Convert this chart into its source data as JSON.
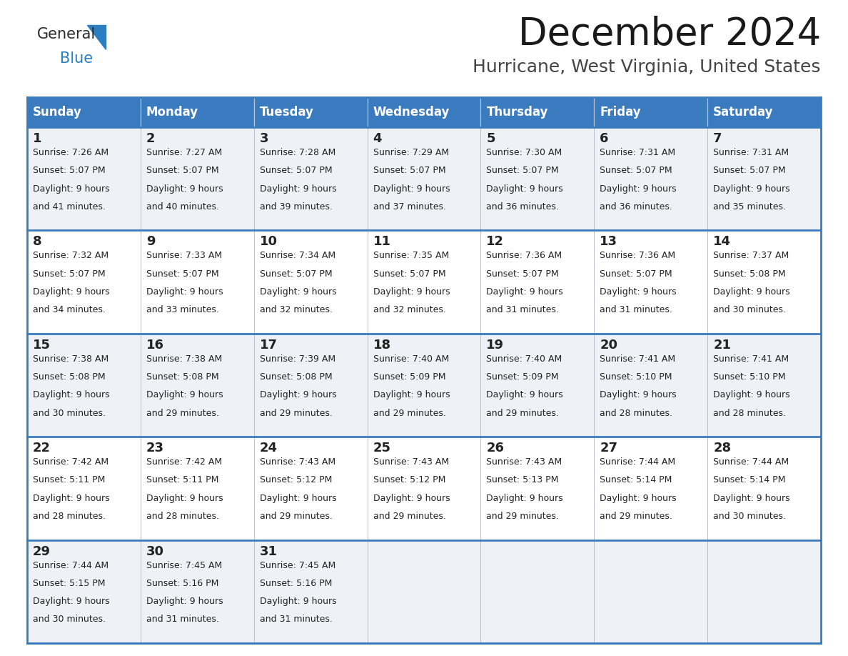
{
  "title": "December 2024",
  "subtitle": "Hurricane, West Virginia, United States",
  "header_bg": "#3a7bbf",
  "header_text": "#ffffff",
  "row_bg_light": "#eef2f7",
  "row_bg_white": "#ffffff",
  "border_color": "#3a7bbf",
  "grid_color": "#b0b8c8",
  "day_headers": [
    "Sunday",
    "Monday",
    "Tuesday",
    "Wednesday",
    "Thursday",
    "Friday",
    "Saturday"
  ],
  "days": [
    {
      "date": 1,
      "col": 0,
      "row": 0,
      "sunrise": "7:26 AM",
      "sunset": "5:07 PM",
      "daylight": "9 hours and 41 minutes."
    },
    {
      "date": 2,
      "col": 1,
      "row": 0,
      "sunrise": "7:27 AM",
      "sunset": "5:07 PM",
      "daylight": "9 hours and 40 minutes."
    },
    {
      "date": 3,
      "col": 2,
      "row": 0,
      "sunrise": "7:28 AM",
      "sunset": "5:07 PM",
      "daylight": "9 hours and 39 minutes."
    },
    {
      "date": 4,
      "col": 3,
      "row": 0,
      "sunrise": "7:29 AM",
      "sunset": "5:07 PM",
      "daylight": "9 hours and 37 minutes."
    },
    {
      "date": 5,
      "col": 4,
      "row": 0,
      "sunrise": "7:30 AM",
      "sunset": "5:07 PM",
      "daylight": "9 hours and 36 minutes."
    },
    {
      "date": 6,
      "col": 5,
      "row": 0,
      "sunrise": "7:31 AM",
      "sunset": "5:07 PM",
      "daylight": "9 hours and 36 minutes."
    },
    {
      "date": 7,
      "col": 6,
      "row": 0,
      "sunrise": "7:31 AM",
      "sunset": "5:07 PM",
      "daylight": "9 hours and 35 minutes."
    },
    {
      "date": 8,
      "col": 0,
      "row": 1,
      "sunrise": "7:32 AM",
      "sunset": "5:07 PM",
      "daylight": "9 hours and 34 minutes."
    },
    {
      "date": 9,
      "col": 1,
      "row": 1,
      "sunrise": "7:33 AM",
      "sunset": "5:07 PM",
      "daylight": "9 hours and 33 minutes."
    },
    {
      "date": 10,
      "col": 2,
      "row": 1,
      "sunrise": "7:34 AM",
      "sunset": "5:07 PM",
      "daylight": "9 hours and 32 minutes."
    },
    {
      "date": 11,
      "col": 3,
      "row": 1,
      "sunrise": "7:35 AM",
      "sunset": "5:07 PM",
      "daylight": "9 hours and 32 minutes."
    },
    {
      "date": 12,
      "col": 4,
      "row": 1,
      "sunrise": "7:36 AM",
      "sunset": "5:07 PM",
      "daylight": "9 hours and 31 minutes."
    },
    {
      "date": 13,
      "col": 5,
      "row": 1,
      "sunrise": "7:36 AM",
      "sunset": "5:07 PM",
      "daylight": "9 hours and 31 minutes."
    },
    {
      "date": 14,
      "col": 6,
      "row": 1,
      "sunrise": "7:37 AM",
      "sunset": "5:08 PM",
      "daylight": "9 hours and 30 minutes."
    },
    {
      "date": 15,
      "col": 0,
      "row": 2,
      "sunrise": "7:38 AM",
      "sunset": "5:08 PM",
      "daylight": "9 hours and 30 minutes."
    },
    {
      "date": 16,
      "col": 1,
      "row": 2,
      "sunrise": "7:38 AM",
      "sunset": "5:08 PM",
      "daylight": "9 hours and 29 minutes."
    },
    {
      "date": 17,
      "col": 2,
      "row": 2,
      "sunrise": "7:39 AM",
      "sunset": "5:08 PM",
      "daylight": "9 hours and 29 minutes."
    },
    {
      "date": 18,
      "col": 3,
      "row": 2,
      "sunrise": "7:40 AM",
      "sunset": "5:09 PM",
      "daylight": "9 hours and 29 minutes."
    },
    {
      "date": 19,
      "col": 4,
      "row": 2,
      "sunrise": "7:40 AM",
      "sunset": "5:09 PM",
      "daylight": "9 hours and 29 minutes."
    },
    {
      "date": 20,
      "col": 5,
      "row": 2,
      "sunrise": "7:41 AM",
      "sunset": "5:10 PM",
      "daylight": "9 hours and 28 minutes."
    },
    {
      "date": 21,
      "col": 6,
      "row": 2,
      "sunrise": "7:41 AM",
      "sunset": "5:10 PM",
      "daylight": "9 hours and 28 minutes."
    },
    {
      "date": 22,
      "col": 0,
      "row": 3,
      "sunrise": "7:42 AM",
      "sunset": "5:11 PM",
      "daylight": "9 hours and 28 minutes."
    },
    {
      "date": 23,
      "col": 1,
      "row": 3,
      "sunrise": "7:42 AM",
      "sunset": "5:11 PM",
      "daylight": "9 hours and 28 minutes."
    },
    {
      "date": 24,
      "col": 2,
      "row": 3,
      "sunrise": "7:43 AM",
      "sunset": "5:12 PM",
      "daylight": "9 hours and 29 minutes."
    },
    {
      "date": 25,
      "col": 3,
      "row": 3,
      "sunrise": "7:43 AM",
      "sunset": "5:12 PM",
      "daylight": "9 hours and 29 minutes."
    },
    {
      "date": 26,
      "col": 4,
      "row": 3,
      "sunrise": "7:43 AM",
      "sunset": "5:13 PM",
      "daylight": "9 hours and 29 minutes."
    },
    {
      "date": 27,
      "col": 5,
      "row": 3,
      "sunrise": "7:44 AM",
      "sunset": "5:14 PM",
      "daylight": "9 hours and 29 minutes."
    },
    {
      "date": 28,
      "col": 6,
      "row": 3,
      "sunrise": "7:44 AM",
      "sunset": "5:14 PM",
      "daylight": "9 hours and 30 minutes."
    },
    {
      "date": 29,
      "col": 0,
      "row": 4,
      "sunrise": "7:44 AM",
      "sunset": "5:15 PM",
      "daylight": "9 hours and 30 minutes."
    },
    {
      "date": 30,
      "col": 1,
      "row": 4,
      "sunrise": "7:45 AM",
      "sunset": "5:16 PM",
      "daylight": "9 hours and 31 minutes."
    },
    {
      "date": 31,
      "col": 2,
      "row": 4,
      "sunrise": "7:45 AM",
      "sunset": "5:16 PM",
      "daylight": "9 hours and 31 minutes."
    }
  ],
  "num_rows": 5,
  "logo_general_color": "#2a2a2a",
  "logo_blue_color": "#2b7ec1",
  "title_color": "#1a1a1a",
  "subtitle_color": "#444444",
  "date_num_color": "#222222",
  "cell_text_color": "#222222"
}
